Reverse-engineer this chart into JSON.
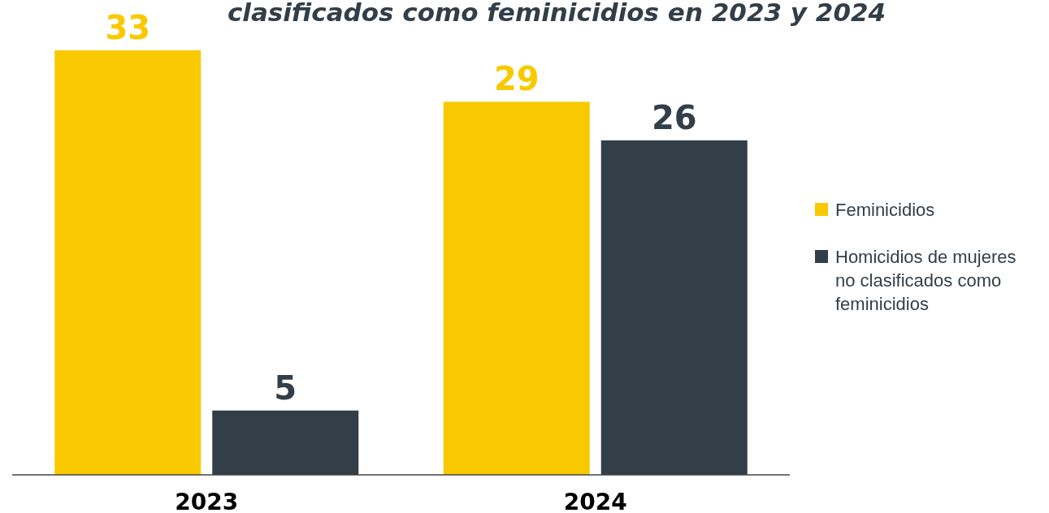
{
  "chart_data": {
    "type": "bar",
    "title": "clasificados como feminicidios en 2023 y 2024",
    "categories": [
      "2023",
      "2024"
    ],
    "series": [
      {
        "name": "Feminicidios",
        "color": "#f9c900",
        "values": [
          33,
          29
        ]
      },
      {
        "name": "Homicidios de mujeres no clasificados como feminicidios",
        "color": "#323e48",
        "values": [
          5,
          26
        ]
      }
    ],
    "data_labels": true,
    "legend": "right"
  }
}
